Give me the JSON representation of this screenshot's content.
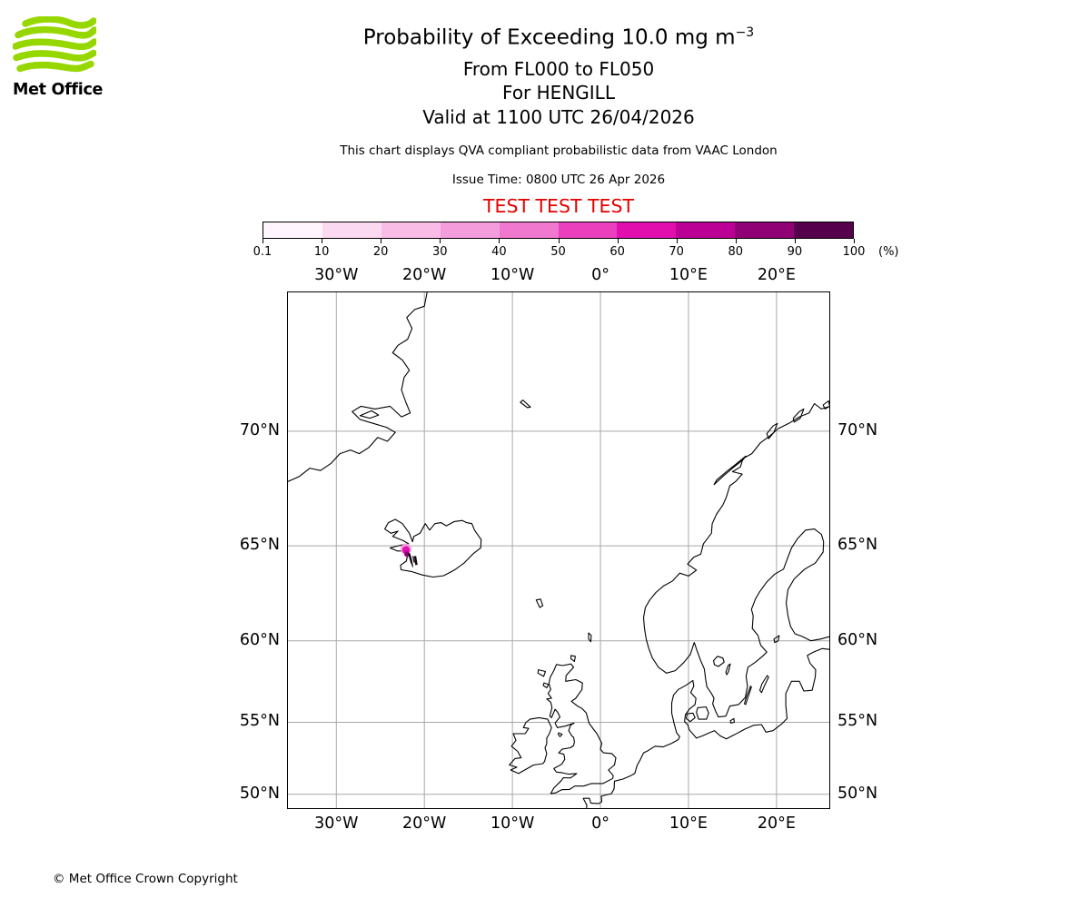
{
  "logo": {
    "brand": "Met Office",
    "green": "#97d700"
  },
  "header": {
    "title_main": "Probability of Exceeding 10.0 mg m",
    "title_sup": "−3",
    "flight_levels": "From FL000 to FL050",
    "volcano_line": "For HENGILL",
    "valid_line": "Valid at 1100 UTC 26/04/2026",
    "note": "This chart displays QVA compliant probabilistic data from VAAC London",
    "issue_time": "Issue Time: 0800 UTC 26 Apr 2026",
    "test_text": "TEST TEST TEST",
    "test_color": "#e60000"
  },
  "footer": {
    "copyright": "© Met Office Crown Copyright"
  },
  "chart_data": {
    "type": "heatmap",
    "title": "Probability of Exceeding 10.0 mg m⁻³",
    "flight_levels": "From FL000 to FL050",
    "volcano": "HENGILL",
    "valid_time": "1100 UTC 26/04/2026",
    "issue_time": "0800 UTC 26 Apr 2026",
    "data_source": "QVA compliant probabilistic data from VAAC London",
    "colorbar": {
      "unit_label": "(%)",
      "tick_labels": [
        "0.1",
        "10",
        "20",
        "30",
        "40",
        "50",
        "60",
        "70",
        "80",
        "90",
        "100"
      ],
      "levels_percent": [
        0.1,
        10,
        20,
        30,
        40,
        50,
        60,
        70,
        80,
        90,
        100
      ],
      "segment_colors": [
        "#fef6fc",
        "#fbd9f1",
        "#f8bce7",
        "#f59ddc",
        "#f178cf",
        "#ec3fbe",
        "#e00fae",
        "#bb0195",
        "#8f0174",
        "#55014b"
      ]
    },
    "map": {
      "projection": "mercator",
      "lon_range": [
        -35.6,
        26.1
      ],
      "lat_range": [
        48.9,
        74.8
      ],
      "grid_color": "#a8a8a8",
      "coast_color": "#000000",
      "lon_ticks": [
        {
          "value": -30,
          "label": "30°W"
        },
        {
          "value": -20,
          "label": "20°W"
        },
        {
          "value": -10,
          "label": "10°W"
        },
        {
          "value": 0,
          "label": "0°"
        },
        {
          "value": 10,
          "label": "10°E"
        },
        {
          "value": 20,
          "label": "20°E"
        }
      ],
      "lat_ticks": [
        {
          "value": 70,
          "label": "70°N"
        },
        {
          "value": 65,
          "label": "65°N"
        },
        {
          "value": 60,
          "label": "60°N"
        },
        {
          "value": 55,
          "label": "55°N"
        },
        {
          "value": 50,
          "label": "50°N"
        }
      ]
    },
    "ash_area": {
      "description": "Single small area of exceedance probability over south-west Iceland near Hengill; innermost contours reach the dark top-of-scale colours",
      "center": {
        "lon": -21.6,
        "lat": 64.4
      },
      "features": [
        {
          "shape": "circle",
          "lon": -22.1,
          "lat": 64.85,
          "r": 6,
          "color": "#f59ddc"
        },
        {
          "shape": "circle",
          "lon": -22.08,
          "lat": 64.8,
          "r": 4.2,
          "color": "#e00fae"
        },
        {
          "shape": "circle",
          "lon": -21.98,
          "lat": 64.6,
          "r": 3,
          "color": "#8f0174"
        },
        {
          "shape": "polygon",
          "color": "#2a0126",
          "pts": [
            [
              -21.82,
              64.62
            ],
            [
              -21.55,
              64.22
            ],
            [
              -21.3,
              63.95
            ],
            [
              -21.45,
              64.32
            ],
            [
              -21.65,
              64.62
            ]
          ]
        },
        {
          "shape": "polyline",
          "color": "#1b0118",
          "width": 2.5,
          "pts": [
            [
              -21.06,
              64.5
            ],
            [
              -20.9,
              64.06
            ]
          ]
        },
        {
          "shape": "polyline",
          "color": "#000000",
          "width": 1.2,
          "pts": [
            [
              -21.3,
              64.5
            ],
            [
              -21.15,
              64.18
            ]
          ]
        }
      ]
    }
  }
}
